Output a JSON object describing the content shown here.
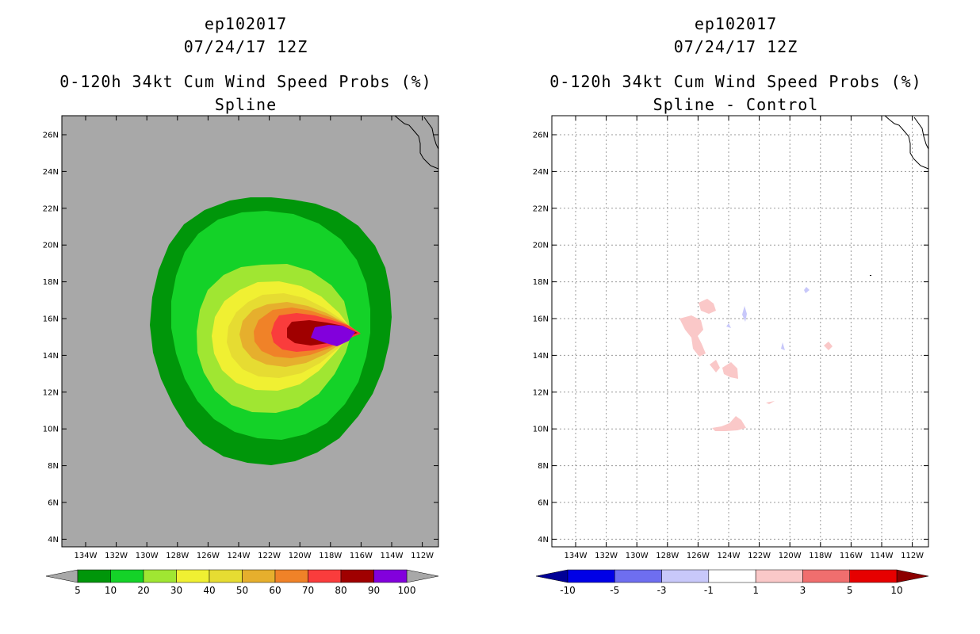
{
  "panels": [
    {
      "storm": "ep102017",
      "datetime": "07/24/17 12Z",
      "product": "0-120h 34kt Cum Wind Speed Probs (%)",
      "variant": "Spline"
    },
    {
      "storm": "ep102017",
      "datetime": "07/24/17 12Z",
      "product": "0-120h 34kt Cum Wind Speed Probs (%)",
      "variant": "Spline - Control"
    }
  ],
  "map": {
    "lat_labels": [
      "26N",
      "24N",
      "22N",
      "20N",
      "18N",
      "16N",
      "14N",
      "12N",
      "10N",
      "8N",
      "6N",
      "4N"
    ],
    "lon_labels": [
      "134W",
      "132W",
      "130W",
      "128W",
      "126W",
      "124W",
      "122W",
      "120W",
      "118W",
      "116W",
      "114W",
      "112W"
    ],
    "land_color": "#a8a8a8",
    "storm_center": {
      "lon": -116.5,
      "lat": 15.0
    }
  },
  "colorbar_left": {
    "labels": [
      "5",
      "10",
      "20",
      "30",
      "40",
      "50",
      "60",
      "70",
      "80",
      "90",
      "100"
    ],
    "colors": [
      "#00960a",
      "#14d228",
      "#a0e632",
      "#f0f032",
      "#e6dc32",
      "#e6af2d",
      "#f08228",
      "#fa3c3c",
      "#a00000",
      "#8200dc"
    ],
    "under_color": "#a8a8a8",
    "over_color": "#a8a8a8"
  },
  "colorbar_right": {
    "labels": [
      "-10",
      "-5",
      "-3",
      "-1",
      "1",
      "3",
      "5",
      "10"
    ],
    "colors": [
      "#0000e6",
      "#6e6ef0",
      "#c8c8fa",
      "#ffffff",
      "#fac8c8",
      "#f06e6e",
      "#e60000"
    ],
    "under_color": "#000096",
    "over_color": "#8c0000"
  },
  "chart_data": {
    "type": "heatmap",
    "title": "0-120h 34kt Cum Wind Speed Probs (%)",
    "storm": "ep102017",
    "valid": "07/24/17 12Z",
    "x_range_lon": [
      -135.5,
      -111
    ],
    "y_range_lat": [
      3.5,
      27
    ],
    "left_panel": {
      "subtitle": "Spline",
      "units": "%",
      "contour_levels": [
        5,
        10,
        20,
        30,
        40,
        50,
        60,
        70,
        80,
        90,
        100
      ],
      "max_center_lon": -118.5,
      "max_center_lat": 15.0
    },
    "right_panel": {
      "subtitle": "Spline - Control",
      "contour_levels": [
        -10,
        -5,
        -3,
        -1,
        1,
        3,
        5,
        10
      ]
    }
  }
}
